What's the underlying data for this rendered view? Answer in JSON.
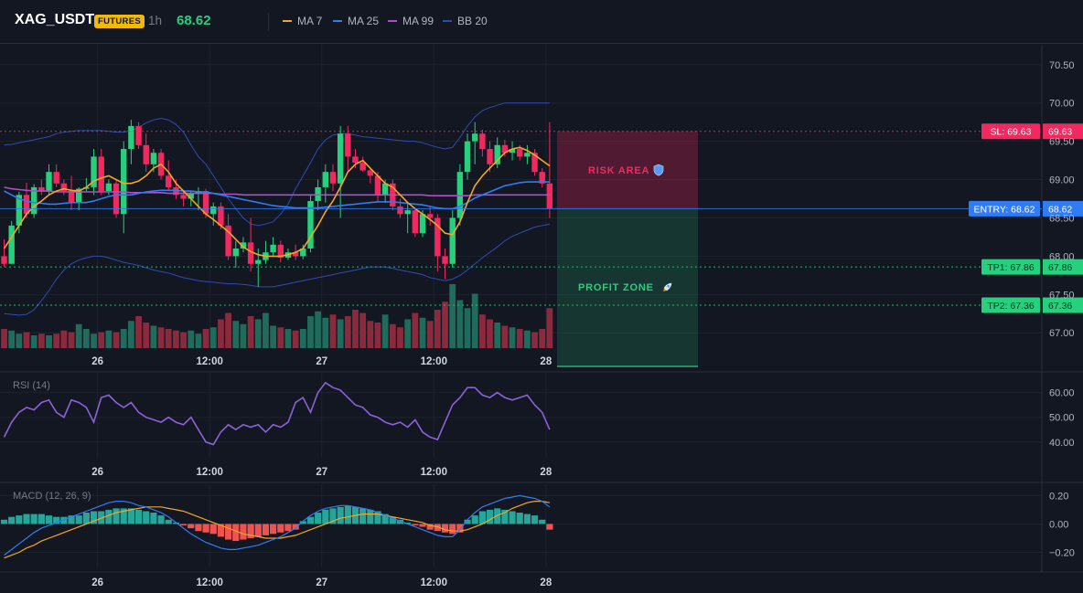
{
  "header": {
    "symbol": "XAG_USDT",
    "badge": "FUTURES",
    "interval": "1h",
    "last_price": "68.62",
    "legend": [
      {
        "name": "MA 7",
        "color": "#f5a623"
      },
      {
        "name": "MA 25",
        "color": "#2f7cf6"
      },
      {
        "name": "MA 99",
        "color": "#b04fc4"
      },
      {
        "name": "BB 20",
        "color": "#2f4bb0"
      }
    ]
  },
  "colors": {
    "up": "#26d07c",
    "down": "#f2295f",
    "vol_up": "#1f6b5c",
    "vol_down": "#8a2a3c",
    "rsi": "#8b62d9",
    "macd": "#2f7cf6",
    "signal": "#f5a623",
    "hist_up": "#26a69a",
    "hist_down": "#ef5350",
    "risk": "#f2295f",
    "profit": "#26d07c",
    "entry": "#2f7cf6"
  },
  "chart_data": [
    {
      "type": "candlestick",
      "x_labels": [
        "26",
        "12:00",
        "27",
        "12:00",
        "28"
      ],
      "y_ticks": [
        "70.50",
        "70.00",
        "69.50",
        "69.00",
        "68.50",
        "68.00",
        "67.50",
        "67.00"
      ],
      "y_tick_values": [
        70.5,
        70.0,
        69.5,
        69.0,
        68.5,
        68.0,
        67.5,
        67.0
      ],
      "ylim": [
        66.8,
        70.76
      ],
      "ohlc": [
        [
          68.0,
          68.22,
          67.86,
          67.9
        ],
        [
          67.9,
          68.46,
          67.9,
          68.4
        ],
        [
          68.4,
          68.84,
          68.3,
          68.8
        ],
        [
          68.8,
          68.96,
          68.5,
          68.55
        ],
        [
          68.55,
          68.94,
          68.5,
          68.9
        ],
        [
          68.9,
          69.0,
          68.8,
          68.85
        ],
        [
          68.85,
          69.2,
          68.8,
          69.1
        ],
        [
          69.1,
          69.2,
          68.9,
          68.95
        ],
        [
          68.95,
          69.0,
          68.8,
          68.85
        ],
        [
          68.85,
          69.05,
          68.6,
          68.7
        ],
        [
          68.7,
          68.9,
          68.6,
          68.88
        ],
        [
          68.88,
          69.02,
          68.85,
          68.9
        ],
        [
          68.9,
          69.4,
          68.8,
          69.3
        ],
        [
          69.3,
          69.4,
          68.8,
          68.85
        ],
        [
          68.85,
          69.0,
          68.8,
          68.95
        ],
        [
          68.95,
          69.0,
          68.5,
          68.55
        ],
        [
          68.55,
          69.5,
          68.3,
          69.4
        ],
        [
          69.4,
          69.78,
          69.2,
          69.7
        ],
        [
          69.7,
          69.75,
          69.4,
          69.45
        ],
        [
          69.45,
          69.6,
          69.1,
          69.2
        ],
        [
          69.2,
          69.4,
          69.1,
          69.35
        ],
        [
          69.35,
          69.4,
          69.0,
          69.05
        ],
        [
          69.05,
          69.25,
          68.85,
          68.9
        ],
        [
          68.9,
          69.0,
          68.75,
          68.8
        ],
        [
          68.8,
          68.85,
          68.65,
          68.75
        ],
        [
          68.75,
          68.85,
          68.65,
          68.82
        ],
        [
          68.82,
          68.9,
          68.6,
          68.85
        ],
        [
          68.85,
          68.88,
          68.5,
          68.55
        ],
        [
          68.55,
          68.7,
          68.4,
          68.65
        ],
        [
          68.65,
          68.7,
          68.35,
          68.4
        ],
        [
          68.4,
          68.55,
          67.95,
          68.0
        ],
        [
          68.0,
          68.2,
          67.85,
          68.1
        ],
        [
          68.1,
          68.25,
          68.05,
          68.18
        ],
        [
          68.18,
          68.5,
          67.8,
          67.9
        ],
        [
          67.9,
          68.1,
          67.6,
          67.95
        ],
        [
          67.95,
          68.2,
          67.9,
          68.05
        ],
        [
          68.05,
          68.25,
          68.0,
          68.15
        ],
        [
          68.15,
          68.2,
          67.92,
          67.98
        ],
        [
          67.98,
          68.1,
          67.95,
          68.05
        ],
        [
          68.05,
          68.15,
          67.95,
          68.0
        ],
        [
          68.0,
          68.15,
          67.96,
          68.1
        ],
        [
          68.1,
          68.8,
          68.05,
          68.72
        ],
        [
          68.72,
          69.0,
          68.6,
          68.9
        ],
        [
          68.9,
          69.2,
          68.7,
          69.1
        ],
        [
          69.1,
          69.2,
          68.85,
          68.95
        ],
        [
          68.95,
          69.7,
          68.5,
          69.6
        ],
        [
          69.6,
          69.7,
          69.1,
          69.3
        ],
        [
          69.3,
          69.4,
          69.15,
          69.22
        ],
        [
          69.22,
          69.3,
          69.1,
          69.12
        ],
        [
          69.12,
          69.15,
          68.95,
          69.05
        ],
        [
          69.05,
          69.1,
          68.7,
          68.8
        ],
        [
          68.8,
          69.0,
          68.7,
          68.95
        ],
        [
          68.95,
          69.0,
          68.6,
          68.65
        ],
        [
          68.65,
          68.75,
          68.5,
          68.55
        ],
        [
          68.55,
          68.7,
          68.3,
          68.6
        ],
        [
          68.6,
          68.62,
          68.25,
          68.3
        ],
        [
          68.3,
          68.6,
          68.25,
          68.55
        ],
        [
          68.55,
          68.65,
          68.4,
          68.5
        ],
        [
          68.5,
          68.55,
          67.8,
          68.0
        ],
        [
          68.0,
          68.1,
          67.7,
          67.9
        ],
        [
          67.9,
          68.6,
          67.85,
          68.5
        ],
        [
          68.5,
          69.2,
          68.4,
          69.1
        ],
        [
          69.1,
          69.6,
          69.0,
          69.5
        ],
        [
          69.5,
          69.75,
          69.2,
          69.6
        ],
        [
          69.6,
          69.65,
          69.3,
          69.4
        ],
        [
          69.4,
          69.5,
          69.1,
          69.2
        ],
        [
          69.2,
          69.55,
          69.15,
          69.45
        ],
        [
          69.45,
          69.52,
          69.3,
          69.35
        ],
        [
          69.35,
          69.5,
          69.25,
          69.4
        ],
        [
          69.4,
          69.45,
          69.25,
          69.3
        ],
        [
          69.3,
          69.45,
          69.2,
          69.35
        ],
        [
          69.35,
          69.4,
          69.05,
          69.1
        ],
        [
          69.1,
          69.15,
          68.9,
          68.95
        ],
        [
          68.95,
          69.75,
          68.5,
          68.62
        ]
      ],
      "volume": [
        12,
        11,
        9,
        10,
        8,
        9,
        8,
        9,
        11,
        10,
        15,
        12,
        9,
        10,
        11,
        10,
        12,
        17,
        20,
        16,
        14,
        13,
        12,
        11,
        10,
        11,
        9,
        12,
        13,
        18,
        22,
        17,
        15,
        20,
        18,
        22,
        14,
        13,
        12,
        11,
        12,
        20,
        23,
        19,
        21,
        18,
        20,
        24,
        22,
        17,
        16,
        21,
        15,
        13,
        18,
        22,
        19,
        17,
        24,
        29,
        40,
        30,
        25,
        34,
        21,
        18,
        16,
        14,
        13,
        12,
        11,
        10,
        12,
        25
      ],
      "ma7": [
        68.1,
        68.25,
        68.4,
        68.55,
        68.65,
        68.72,
        68.8,
        68.85,
        68.88,
        68.86,
        68.85,
        68.9,
        68.98,
        69.02,
        69.05,
        69.0,
        68.95,
        68.95,
        68.98,
        69.05,
        69.15,
        69.2,
        69.1,
        68.95,
        68.85,
        68.75,
        68.65,
        68.55,
        68.48,
        68.4,
        68.32,
        68.22,
        68.12,
        68.06,
        68.02,
        68.0,
        68.0,
        68.0,
        68.02,
        68.05,
        68.1,
        68.25,
        68.4,
        68.58,
        68.72,
        68.9,
        69.1,
        69.2,
        69.25,
        69.15,
        69.05,
        68.95,
        68.9,
        68.8,
        68.7,
        68.62,
        68.55,
        68.48,
        68.4,
        68.3,
        68.28,
        68.45,
        68.7,
        68.92,
        69.05,
        69.15,
        69.25,
        69.35,
        69.4,
        69.42,
        69.38,
        69.32,
        69.25,
        69.18
      ],
      "ma25": [
        68.85,
        68.8,
        68.75,
        68.72,
        68.7,
        68.69,
        68.68,
        68.68,
        68.69,
        68.7,
        68.7,
        68.7,
        68.72,
        68.75,
        68.78,
        68.8,
        68.8,
        68.8,
        68.82,
        68.84,
        68.85,
        68.86,
        68.86,
        68.86,
        68.85,
        68.85,
        68.84,
        68.84,
        68.82,
        68.8,
        68.78,
        68.76,
        68.74,
        68.72,
        68.7,
        68.68,
        68.66,
        68.65,
        68.64,
        68.63,
        68.63,
        68.63,
        68.63,
        68.64,
        68.65,
        68.66,
        68.67,
        68.68,
        68.69,
        68.7,
        68.71,
        68.71,
        68.71,
        68.7,
        68.69,
        68.68,
        68.67,
        68.65,
        68.63,
        68.62,
        68.62,
        68.65,
        68.7,
        68.76,
        68.8,
        68.84,
        68.88,
        68.92,
        68.94,
        68.96,
        68.97,
        68.97,
        68.97,
        68.97
      ],
      "ma99": [
        68.9,
        68.88,
        68.87,
        68.86,
        68.85,
        68.85,
        68.85,
        68.84,
        68.84,
        68.84,
        68.84,
        68.84,
        68.84,
        68.84,
        68.84,
        68.84,
        68.84,
        68.83,
        68.83,
        68.83,
        68.83,
        68.83,
        68.82,
        68.82,
        68.82,
        68.82,
        68.82,
        68.82,
        68.82,
        68.81,
        68.81,
        68.81,
        68.8,
        68.8,
        68.8,
        68.8,
        68.8,
        68.8,
        68.8,
        68.8,
        68.8,
        68.8,
        68.8,
        68.8,
        68.8,
        68.8,
        68.8,
        68.8,
        68.8,
        68.8,
        68.8,
        68.8,
        68.8,
        68.8,
        68.8,
        68.8,
        68.8,
        68.79,
        68.79,
        68.79,
        68.79,
        68.79,
        68.79,
        68.8,
        68.8,
        68.8,
        68.8,
        68.8,
        68.8,
        68.8,
        68.8,
        68.8,
        68.8,
        68.8
      ],
      "bb_upper": [
        69.45,
        69.46,
        69.48,
        69.5,
        69.52,
        69.54,
        69.56,
        69.6,
        69.62,
        69.63,
        69.64,
        69.64,
        69.64,
        69.64,
        69.63,
        69.62,
        69.62,
        69.64,
        69.68,
        69.74,
        69.78,
        69.8,
        69.78,
        69.72,
        69.62,
        69.45,
        69.3,
        69.2,
        69.05,
        68.9,
        68.75,
        68.62,
        68.5,
        68.42,
        68.4,
        68.42,
        68.45,
        68.55,
        68.68,
        68.88,
        69.05,
        69.22,
        69.4,
        69.52,
        69.58,
        69.6,
        69.6,
        69.58,
        69.56,
        69.55,
        69.54,
        69.53,
        69.52,
        69.51,
        69.5,
        69.5,
        69.48,
        69.45,
        69.42,
        69.4,
        69.42,
        69.55,
        69.7,
        69.82,
        69.9,
        69.94,
        69.97,
        70.0,
        70.0,
        70.0,
        70.0,
        70.0,
        70.0,
        70.0
      ],
      "bb_lower": [
        67.25,
        67.24,
        67.23,
        67.24,
        67.3,
        67.42,
        67.55,
        67.7,
        67.82,
        67.9,
        67.95,
        67.98,
        68.0,
        68.0,
        67.98,
        67.95,
        67.92,
        67.9,
        67.88,
        67.85,
        67.82,
        67.8,
        67.78,
        67.75,
        67.72,
        67.7,
        67.68,
        67.67,
        67.66,
        67.65,
        67.64,
        67.64,
        67.63,
        67.62,
        67.6,
        67.6,
        67.6,
        67.62,
        67.64,
        67.66,
        67.68,
        67.7,
        67.72,
        67.74,
        67.76,
        67.78,
        67.8,
        67.82,
        67.84,
        67.86,
        67.86,
        67.86,
        67.84,
        67.82,
        67.8,
        67.78,
        67.76,
        67.72,
        67.7,
        67.68,
        67.7,
        67.75,
        67.82,
        67.9,
        67.98,
        68.05,
        68.12,
        68.2,
        68.26,
        68.3,
        68.34,
        68.38,
        68.4,
        68.42
      ]
    },
    {
      "type": "line",
      "title": "RSI (14)",
      "y_ticks": [
        "60.00",
        "50.00",
        "40.00"
      ],
      "y_tick_values": [
        60,
        50,
        40
      ],
      "ylim": [
        34,
        68
      ],
      "x_labels": [
        "26",
        "12:00",
        "27",
        "12:00",
        "28"
      ],
      "values": [
        42,
        48,
        52,
        54,
        53,
        56,
        57,
        52,
        50,
        57,
        56,
        54,
        48,
        58,
        59,
        56,
        54,
        56,
        52,
        50,
        49,
        48,
        50,
        48,
        47,
        50,
        45,
        40,
        39,
        44,
        47,
        45,
        47,
        46,
        47,
        44,
        47,
        46,
        48,
        56,
        58,
        52,
        60,
        64,
        62,
        61,
        58,
        55,
        54,
        51,
        50,
        48,
        47,
        48,
        46,
        49,
        44,
        42,
        41,
        48,
        55,
        58,
        62,
        62,
        59,
        58,
        60,
        58,
        57,
        58,
        59,
        55,
        52,
        45
      ]
    },
    {
      "type": "bar+line",
      "title": "MACD (12, 26, 9)",
      "y_ticks": [
        "0.20",
        "0.00",
        "−0.20"
      ],
      "y_tick_values": [
        0.2,
        0,
        -0.2
      ],
      "ylim": [
        -0.3,
        0.28
      ],
      "x_labels": [
        "26",
        "12:00",
        "27",
        "12:00",
        "28"
      ],
      "histogram": [
        0.03,
        0.05,
        0.06,
        0.07,
        0.07,
        0.07,
        0.06,
        0.05,
        0.05,
        0.06,
        0.06,
        0.08,
        0.09,
        0.09,
        0.1,
        0.11,
        0.11,
        0.11,
        0.1,
        0.09,
        0.08,
        0.06,
        0.03,
        0.01,
        -0.01,
        -0.03,
        -0.05,
        -0.06,
        -0.07,
        -0.09,
        -0.11,
        -0.12,
        -0.11,
        -0.1,
        -0.09,
        -0.08,
        -0.07,
        -0.06,
        -0.05,
        -0.04,
        0.02,
        0.05,
        0.08,
        0.1,
        0.11,
        0.12,
        0.13,
        0.12,
        0.11,
        0.1,
        0.09,
        0.07,
        0.05,
        0.03,
        0.01,
        -0.01,
        -0.02,
        -0.04,
        -0.05,
        -0.06,
        -0.07,
        -0.06,
        0.03,
        0.06,
        0.09,
        0.1,
        0.11,
        0.1,
        0.09,
        0.08,
        0.07,
        0.06,
        0.03,
        -0.04
      ],
      "macd": [
        -0.22,
        -0.18,
        -0.14,
        -0.1,
        -0.06,
        -0.03,
        -0.01,
        0.01,
        0.03,
        0.05,
        0.07,
        0.09,
        0.11,
        0.13,
        0.15,
        0.16,
        0.16,
        0.15,
        0.13,
        0.12,
        0.1,
        0.08,
        0.05,
        0.01,
        -0.03,
        -0.07,
        -0.1,
        -0.13,
        -0.15,
        -0.17,
        -0.18,
        -0.18,
        -0.17,
        -0.16,
        -0.15,
        -0.13,
        -0.11,
        -0.09,
        -0.06,
        -0.03,
        0.02,
        0.06,
        0.09,
        0.11,
        0.12,
        0.13,
        0.13,
        0.12,
        0.11,
        0.1,
        0.08,
        0.06,
        0.04,
        0.02,
        0.0,
        -0.02,
        -0.04,
        -0.06,
        -0.08,
        -0.09,
        -0.09,
        -0.04,
        0.03,
        0.08,
        0.12,
        0.14,
        0.16,
        0.18,
        0.19,
        0.2,
        0.19,
        0.18,
        0.16,
        0.12
      ],
      "signal": [
        -0.24,
        -0.22,
        -0.2,
        -0.17,
        -0.15,
        -0.12,
        -0.1,
        -0.08,
        -0.06,
        -0.04,
        -0.02,
        0.0,
        0.02,
        0.04,
        0.06,
        0.08,
        0.09,
        0.1,
        0.11,
        0.12,
        0.12,
        0.12,
        0.11,
        0.1,
        0.09,
        0.07,
        0.05,
        0.03,
        0.01,
        -0.01,
        -0.03,
        -0.05,
        -0.07,
        -0.08,
        -0.09,
        -0.1,
        -0.1,
        -0.1,
        -0.09,
        -0.08,
        -0.06,
        -0.04,
        -0.02,
        0.0,
        0.02,
        0.04,
        0.05,
        0.06,
        0.07,
        0.07,
        0.07,
        0.06,
        0.05,
        0.04,
        0.03,
        0.02,
        0.01,
        -0.01,
        -0.02,
        -0.04,
        -0.05,
        -0.05,
        -0.04,
        -0.02,
        0.0,
        0.03,
        0.06,
        0.08,
        0.11,
        0.13,
        0.15,
        0.16,
        0.16,
        0.15
      ]
    }
  ],
  "levels": {
    "sl": {
      "label": "SL: 69.63",
      "price_label": "69.63",
      "price": 69.63
    },
    "entry": {
      "label": "ENTRY: 68.62",
      "price_label": "68.62",
      "price": 68.62
    },
    "tp1": {
      "label": "TP1: 67.86",
      "price_label": "67.86",
      "price": 67.86
    },
    "tp2": {
      "label": "TP2: 67.36",
      "price_label": "67.36",
      "price": 67.36
    }
  },
  "zones": {
    "risk_label": "RISK AREA",
    "risk_icon": "shield-icon",
    "profit_label": "PROFIT ZONE",
    "profit_icon": "rocket-icon"
  }
}
